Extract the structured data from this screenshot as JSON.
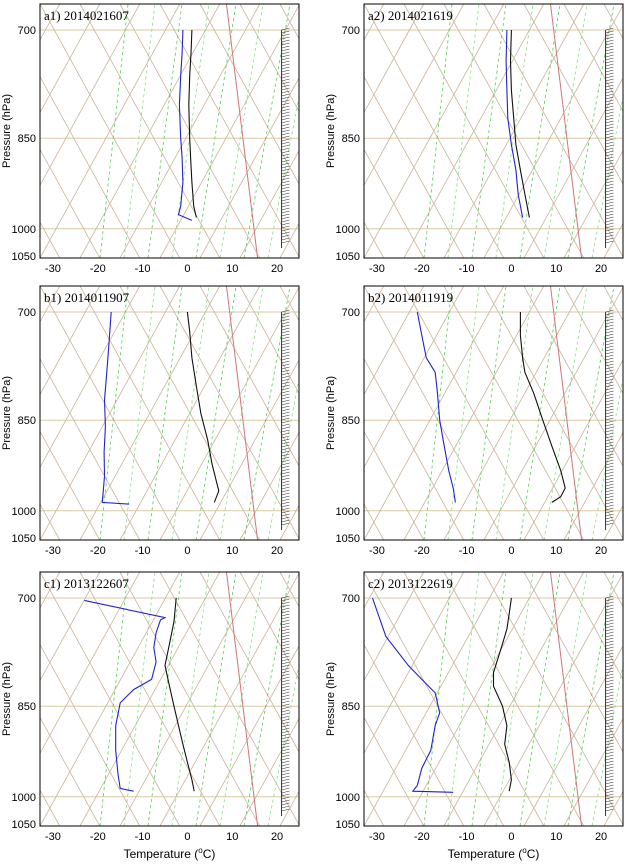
{
  "figure": {
    "xlabel": "Temperature (°C)",
    "xlabel_main": "Temperature (",
    "xlabel_deg": "o",
    "xlabel_end": "C)"
  },
  "colors": {
    "temperature": "#111111",
    "dewpoint": "#2222cc",
    "dry_adiabat": "#c8b49b",
    "isotherm": "#c8b49b",
    "moist_adiabat": "#55cc55",
    "mixing_ratio": "#88dd88",
    "isobar_line": "#d9c9a3",
    "wind_barb": "#333333",
    "reference_line": "#cc7777"
  },
  "chart_data": [
    {
      "id": "a1",
      "title": "a1) 2014021607",
      "type": "line",
      "ylabel": "Pressure (hPa)",
      "y_scale": "log",
      "y_ticks": [
        700,
        850,
        1000,
        1050
      ],
      "ylim": [
        700,
        1050
      ],
      "xlim": [
        -32,
        24
      ],
      "x_ticks": [
        -30,
        -20,
        -10,
        0,
        10,
        20
      ],
      "series": [
        {
          "role": "temperature",
          "points": [
            [
              1,
              700
            ],
            [
              0.8,
              730
            ],
            [
              0.5,
              760
            ],
            [
              0.3,
              800
            ],
            [
              0.5,
              850
            ],
            [
              0.7,
              880
            ],
            [
              1,
              920
            ],
            [
              1.4,
              960
            ],
            [
              2,
              980
            ]
          ]
        },
        {
          "role": "dewpoint",
          "points": [
            [
              -1,
              700
            ],
            [
              -1.2,
              730
            ],
            [
              -1.5,
              760
            ],
            [
              -1.8,
              800
            ],
            [
              -1.5,
              850
            ],
            [
              -1.2,
              880
            ],
            [
              -1,
              920
            ],
            [
              -1.5,
              960
            ],
            [
              -2,
              975
            ],
            [
              1,
              985
            ]
          ]
        }
      ]
    },
    {
      "id": "a2",
      "title": "a2) 2014021619",
      "type": "line",
      "ylabel": "Pressure (hPa)",
      "y_scale": "log",
      "y_ticks": [
        700,
        850,
        1000,
        1050
      ],
      "ylim": [
        700,
        1050
      ],
      "xlim": [
        -32,
        24
      ],
      "x_ticks": [
        -30,
        -20,
        -10,
        0,
        10,
        20
      ],
      "series": [
        {
          "role": "temperature",
          "points": [
            [
              0,
              700
            ],
            [
              -0.2,
              740
            ],
            [
              0,
              780
            ],
            [
              0.5,
              820
            ],
            [
              1,
              860
            ],
            [
              2,
              900
            ],
            [
              3,
              940
            ],
            [
              4,
              980
            ]
          ]
        },
        {
          "role": "dewpoint",
          "points": [
            [
              -1,
              700
            ],
            [
              -1.2,
              740
            ],
            [
              -1,
              780
            ],
            [
              -0.8,
              820
            ],
            [
              0,
              860
            ],
            [
              1,
              900
            ],
            [
              1.5,
              940
            ],
            [
              2.5,
              980
            ]
          ]
        }
      ]
    },
    {
      "id": "b1",
      "title": "b1) 2014011907",
      "type": "line",
      "ylabel": "Pressure (hPa)",
      "y_scale": "log",
      "y_ticks": [
        700,
        850,
        1000,
        1050
      ],
      "ylim": [
        700,
        1050
      ],
      "xlim": [
        -32,
        24
      ],
      "x_ticks": [
        -30,
        -20,
        -10,
        0,
        10,
        20
      ],
      "series": [
        {
          "role": "temperature",
          "points": [
            [
              0,
              700
            ],
            [
              0.5,
              725
            ],
            [
              1,
              760
            ],
            [
              2,
              800
            ],
            [
              3,
              840
            ],
            [
              4.5,
              880
            ],
            [
              5.5,
              920
            ],
            [
              6.5,
              950
            ],
            [
              7,
              965
            ],
            [
              6,
              985
            ]
          ]
        },
        {
          "role": "dewpoint",
          "points": [
            [
              -17,
              700
            ],
            [
              -17.5,
              740
            ],
            [
              -18,
              780
            ],
            [
              -18.5,
              820
            ],
            [
              -18.3,
              860
            ],
            [
              -18.6,
              900
            ],
            [
              -18.5,
              940
            ],
            [
              -19,
              985
            ],
            [
              -13,
              988
            ]
          ]
        }
      ]
    },
    {
      "id": "b2",
      "title": "b2) 2014011919",
      "type": "line",
      "ylabel": "Pressure (hPa)",
      "y_scale": "log",
      "y_ticks": [
        700,
        850,
        1000,
        1050
      ],
      "ylim": [
        700,
        1050
      ],
      "xlim": [
        -32,
        24
      ],
      "x_ticks": [
        -30,
        -20,
        -10,
        0,
        10,
        20
      ],
      "series": [
        {
          "role": "temperature",
          "points": [
            [
              2,
              700
            ],
            [
              2,
              730
            ],
            [
              2.5,
              760
            ],
            [
              3,
              780
            ],
            [
              5,
              810
            ],
            [
              7,
              850
            ],
            [
              9,
              890
            ],
            [
              11,
              930
            ],
            [
              12,
              960
            ],
            [
              11,
              975
            ],
            [
              9,
              985
            ]
          ]
        },
        {
          "role": "dewpoint",
          "points": [
            [
              -21,
              700
            ],
            [
              -20,
              730
            ],
            [
              -19,
              760
            ],
            [
              -17,
              780
            ],
            [
              -16.5,
              810
            ],
            [
              -16,
              850
            ],
            [
              -15,
              890
            ],
            [
              -14,
              930
            ],
            [
              -13,
              960
            ],
            [
              -12.5,
              985
            ]
          ]
        }
      ]
    },
    {
      "id": "c1",
      "title": "c1) 2013122607",
      "type": "line",
      "ylabel": "Pressure (hPa)",
      "y_scale": "log",
      "y_ticks": [
        700,
        850,
        1000,
        1050
      ],
      "ylim": [
        700,
        1050
      ],
      "xlim": [
        -32,
        24
      ],
      "x_ticks": [
        -30,
        -20,
        -10,
        0,
        10,
        20
      ],
      "series": [
        {
          "role": "temperature",
          "points": [
            [
              -2.5,
              700
            ],
            [
              -3,
              730
            ],
            [
              -4,
              760
            ],
            [
              -5,
              790
            ],
            [
              -4,
              820
            ],
            [
              -3,
              850
            ],
            [
              -2,
              880
            ],
            [
              -1,
              910
            ],
            [
              0,
              940
            ],
            [
              1,
              970
            ],
            [
              1.5,
              990
            ]
          ]
        },
        {
          "role": "dewpoint",
          "points": [
            [
              -23,
              703
            ],
            [
              -5,
              725
            ],
            [
              -6,
              728
            ],
            [
              -7,
              745
            ],
            [
              -7.5,
              765
            ],
            [
              -7,
              785
            ],
            [
              -8,
              810
            ],
            [
              -12,
              825
            ],
            [
              -15,
              845
            ],
            [
              -16,
              880
            ],
            [
              -16,
              920
            ],
            [
              -15.5,
              960
            ],
            [
              -15,
              985
            ],
            [
              -12,
              990
            ]
          ]
        }
      ]
    },
    {
      "id": "c2",
      "title": "c2) 2013122619",
      "type": "line",
      "ylabel": "Pressure (hPa)",
      "y_scale": "log",
      "y_ticks": [
        700,
        850,
        1000,
        1050
      ],
      "ylim": [
        700,
        1050
      ],
      "xlim": [
        -32,
        24
      ],
      "x_ticks": [
        -30,
        -20,
        -10,
        0,
        10,
        20
      ],
      "series": [
        {
          "role": "temperature",
          "points": [
            [
              0,
              700
            ],
            [
              -0.5,
              720
            ],
            [
              -1,
              740
            ],
            [
              -2,
              760
            ],
            [
              -3,
              780
            ],
            [
              -4,
              800
            ],
            [
              -4,
              820
            ],
            [
              -2,
              850
            ],
            [
              -1,
              880
            ],
            [
              -1.5,
              910
            ],
            [
              -0.5,
              940
            ],
            [
              0,
              970
            ],
            [
              -0.5,
              990
            ]
          ]
        },
        {
          "role": "dewpoint",
          "points": [
            [
              -31,
              700
            ],
            [
              -28,
              750
            ],
            [
              -23,
              790
            ],
            [
              -20,
              810
            ],
            [
              -17,
              830
            ],
            [
              -16,
              860
            ],
            [
              -17,
              880
            ],
            [
              -18,
              920
            ],
            [
              -20,
              950
            ],
            [
              -21,
              980
            ],
            [
              -22,
              990
            ],
            [
              -13,
              992
            ]
          ]
        }
      ]
    }
  ]
}
